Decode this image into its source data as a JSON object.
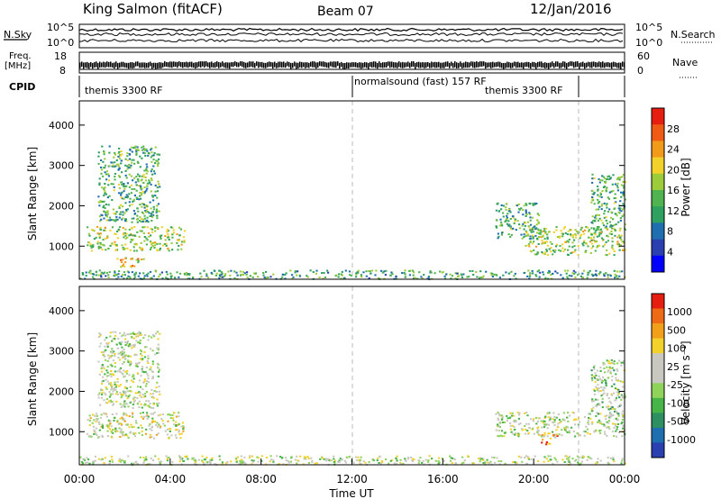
{
  "header": {
    "station": "King Salmon (fitACF)",
    "beam": "Beam 07",
    "date": "12/Jan/2016"
  },
  "top_panels": {
    "nsky_label": "N.Sky",
    "nsearch_label": "N.Search",
    "n_ticks_left": [
      "10^5",
      "10^0"
    ],
    "n_ticks_right": [
      "10^5",
      "10^0"
    ],
    "freq_label_1": "Freq.",
    "freq_label_2": "[MHz]",
    "freq_ticks": [
      "18",
      "8"
    ],
    "nave_label": "Nave",
    "nave_ticks": [
      "60",
      "0"
    ],
    "cpid_label": "CPID",
    "cpid_segments": [
      {
        "label": "themis 3300 RF",
        "start_hr": 0,
        "end_hr": 12
      },
      {
        "label": "normalsound (fast) 157 RF",
        "start_hr": 12,
        "end_hr": 22
      },
      {
        "label": "themis 3300 RF",
        "start_hr": 18.5,
        "end_hr": 22
      }
    ]
  },
  "chart_data": [
    {
      "type": "heatmap",
      "name": "power",
      "ylabel": "Slant Range [km]",
      "xlim_hr": [
        0,
        24
      ],
      "ylim": [
        180,
        4600
      ],
      "yticks": [
        1000,
        2000,
        3000,
        4000
      ],
      "colorbar": {
        "label": "Power [dB]",
        "ticks": [
          "28",
          "24",
          "20",
          "16",
          "12",
          "8",
          "4"
        ],
        "colors": [
          "#0000ff",
          "#2a3fb0",
          "#1f6fb0",
          "#2ea060",
          "#4fb34f",
          "#9ccc3a",
          "#f2d12a",
          "#f29a1a",
          "#ef5a14",
          "#e61e10"
        ]
      },
      "regions": [
        {
          "t0": 0.3,
          "t1": 4.6,
          "r0": 900,
          "r1": 1500,
          "level": 0.55
        },
        {
          "t0": 0.8,
          "t1": 3.5,
          "r0": 1600,
          "r1": 3500,
          "level": 0.3
        },
        {
          "t0": 1.6,
          "t1": 2.8,
          "r0": 500,
          "r1": 750,
          "level": 0.7
        },
        {
          "t0": 19.6,
          "t1": 24,
          "r0": 800,
          "r1": 1500,
          "level": 0.5
        },
        {
          "t0": 18.3,
          "t1": 20.2,
          "r0": 1200,
          "r1": 2100,
          "level": 0.3
        },
        {
          "t0": 22.5,
          "t1": 24,
          "r0": 1400,
          "r1": 2800,
          "level": 0.3
        },
        {
          "t0": 0,
          "t1": 24,
          "r0": 200,
          "r1": 420,
          "level": 0.25
        }
      ]
    },
    {
      "type": "heatmap",
      "name": "velocity",
      "ylabel": "Slant Range [km]",
      "xlabel": "Time UT",
      "xlim_hr": [
        0,
        24
      ],
      "ylim": [
        180,
        4600
      ],
      "yticks": [
        1000,
        2000,
        3000,
        4000
      ],
      "xticks": [
        "00:00",
        "04:00",
        "08:00",
        "12:00",
        "16:00",
        "20:00",
        "00:00"
      ],
      "colorbar": {
        "label": "Velocity [m s⁻¹]",
        "ticks": [
          "1000",
          "500",
          "100",
          "25",
          "-25",
          "-100",
          "-500",
          "-1000"
        ],
        "colors": [
          "#2a3fb0",
          "#1f6fb0",
          "#2e8f60",
          "#46b446",
          "#8fd35a",
          "#c8c8c0",
          "#c8c8c0",
          "#f2d12a",
          "#f2a01a",
          "#ef6a14",
          "#e61e10"
        ]
      },
      "regions": [
        {
          "t0": 0.3,
          "t1": 4.6,
          "r0": 850,
          "r1": 1500,
          "level": 0.55
        },
        {
          "t0": 0.8,
          "t1": 3.5,
          "r0": 1600,
          "r1": 3500,
          "level": 0.5
        },
        {
          "t0": 18.3,
          "t1": 24,
          "r0": 900,
          "r1": 1500,
          "level": 0.5
        },
        {
          "t0": 20.3,
          "t1": 21.0,
          "r0": 700,
          "r1": 1000,
          "level": 0.8
        },
        {
          "t0": 22.5,
          "t1": 24,
          "r0": 1400,
          "r1": 2800,
          "level": 0.45
        },
        {
          "t0": 0,
          "t1": 24,
          "r0": 200,
          "r1": 420,
          "level": 0.5
        }
      ]
    }
  ]
}
